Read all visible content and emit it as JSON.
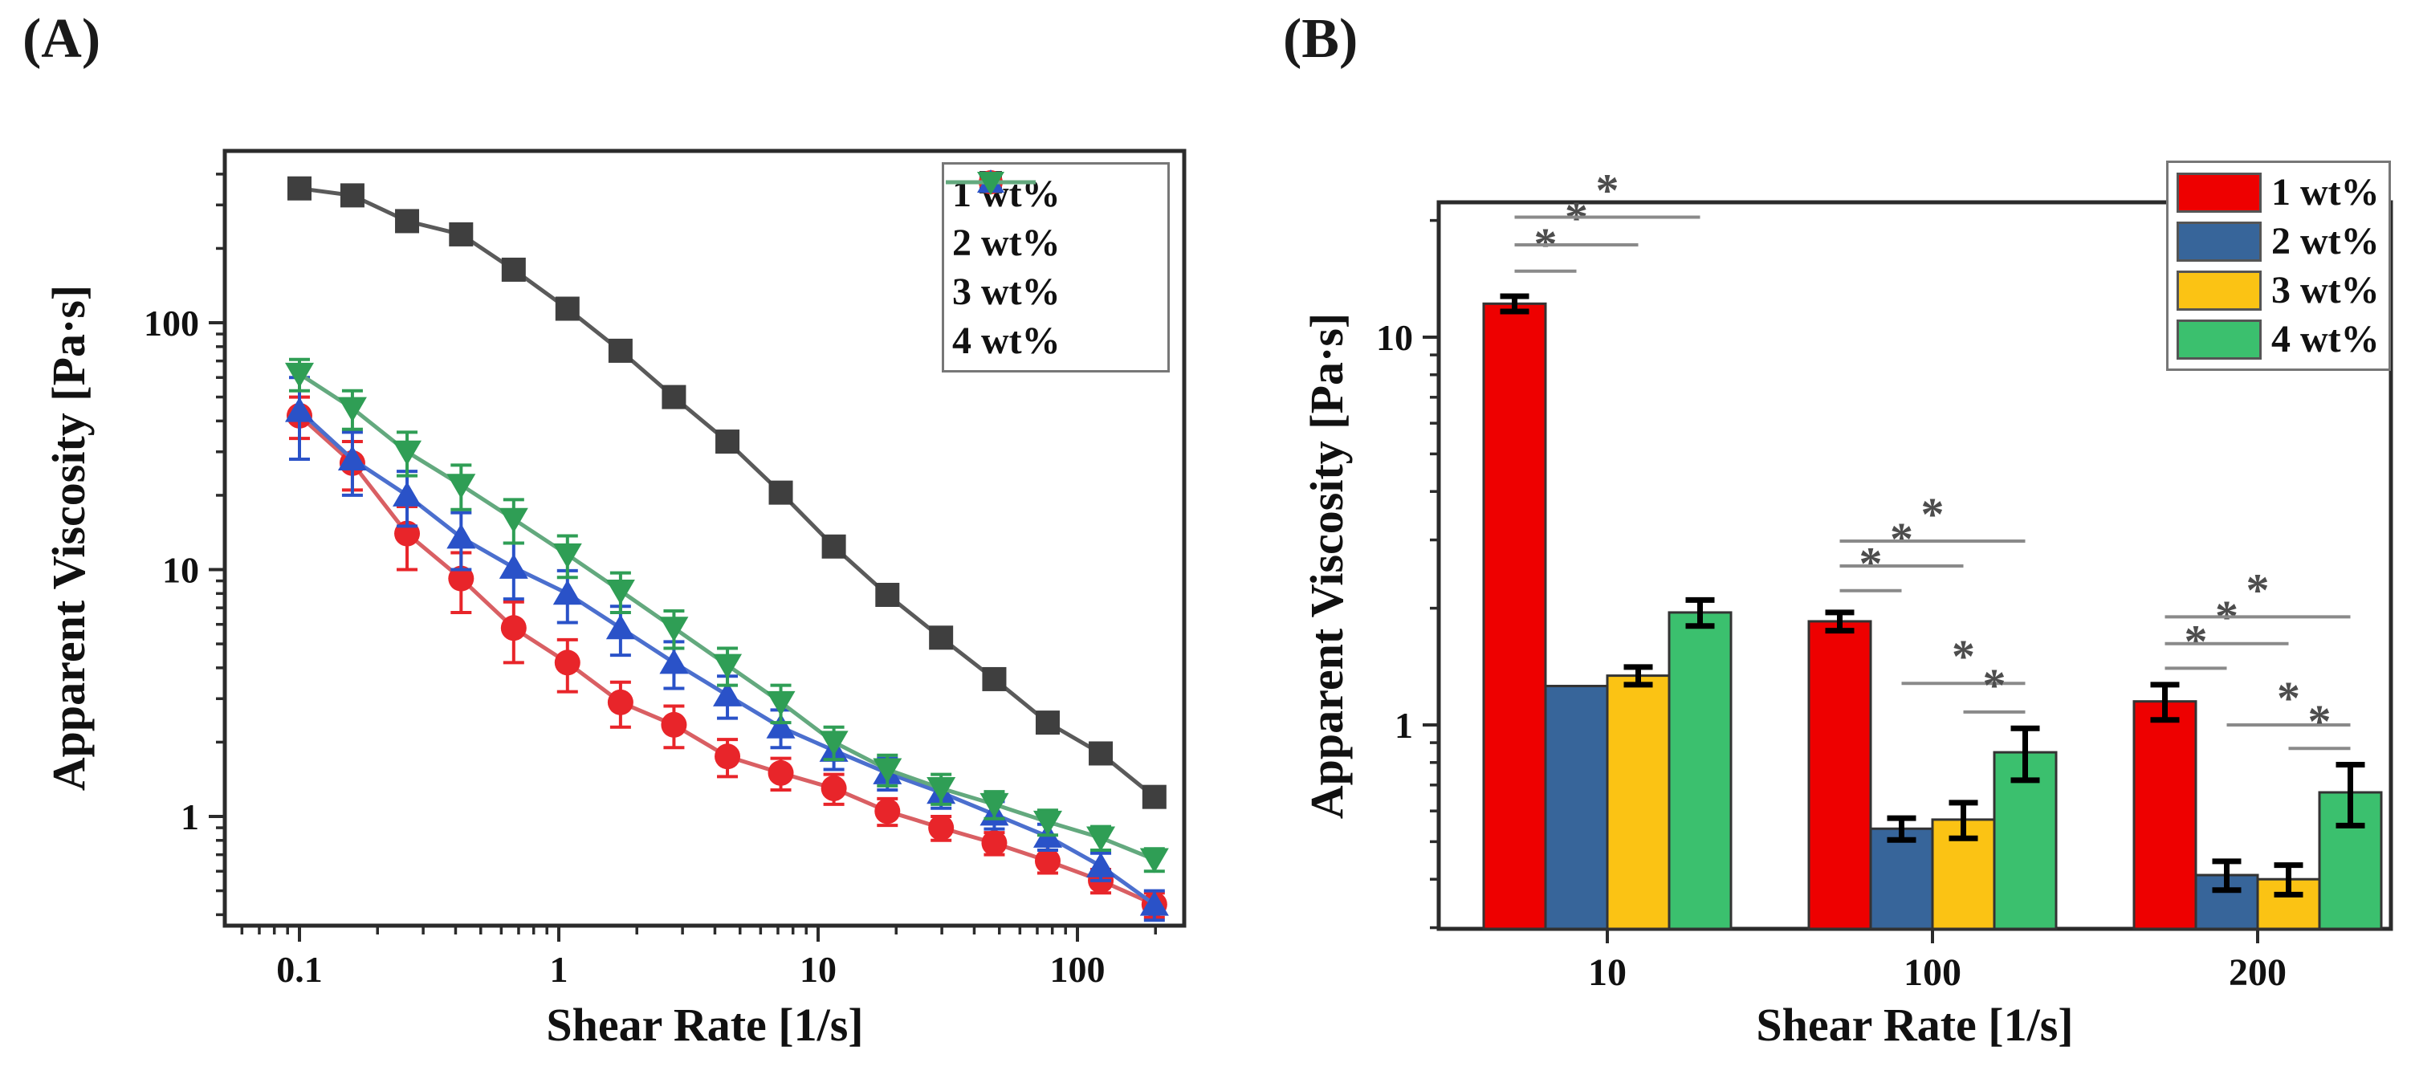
{
  "panels": {
    "a": {
      "label": "(A)"
    },
    "b": {
      "label": "(B)"
    }
  },
  "chart_data": [
    {
      "id": "A",
      "type": "line",
      "xlabel": "Shear Rate [1/s]",
      "ylabel": "Apparent Viscosity [Pa·s]",
      "x_scale": "log",
      "y_scale": "log",
      "xlim": [
        0.05,
        255
      ],
      "ylim": [
        0.36,
        500
      ],
      "x_ticks": [
        0.1,
        1,
        10,
        100
      ],
      "y_ticks": [
        1,
        10,
        100
      ],
      "legend_position": "top-right",
      "grid": false,
      "x": [
        0.1,
        0.16,
        0.26,
        0.42,
        0.67,
        1.08,
        1.73,
        2.78,
        4.47,
        7.18,
        11.5,
        18.5,
        29.8,
        47.8,
        76.8,
        123,
        198
      ],
      "series": [
        {
          "name": "1 wt%",
          "marker": "square",
          "color": "#3f3f3f",
          "line_color": "#5a5a5a",
          "values": [
            350,
            328,
            258,
            228,
            164,
            114,
            77,
            50,
            33,
            20.5,
            12.4,
            7.9,
            5.3,
            3.6,
            2.4,
            1.8,
            1.2
          ],
          "errors": [
            20,
            18,
            15,
            13,
            10,
            7,
            5,
            3.5,
            2.3,
            1.4,
            0.9,
            0.55,
            0.4,
            0.25,
            0.18,
            0.13,
            0.1
          ]
        },
        {
          "name": "2 wt%",
          "marker": "circle",
          "color": "#e8252a",
          "line_color": "#d95f63",
          "values": [
            42,
            27,
            14,
            9.2,
            5.8,
            4.2,
            2.9,
            2.35,
            1.75,
            1.5,
            1.3,
            1.05,
            0.9,
            0.78,
            0.66,
            0.55,
            0.44
          ],
          "errors": [
            8,
            6,
            4,
            2.5,
            1.6,
            1.0,
            0.6,
            0.45,
            0.3,
            0.22,
            0.18,
            0.13,
            0.1,
            0.08,
            0.07,
            0.06,
            0.05
          ]
        },
        {
          "name": "3 wt%",
          "marker": "triangle-up",
          "color": "#2a52c8",
          "line_color": "#4b6fce",
          "values": [
            44,
            28,
            20,
            13.5,
            10.2,
            8.0,
            5.8,
            4.2,
            3.1,
            2.3,
            1.85,
            1.5,
            1.25,
            1.02,
            0.83,
            0.63,
            0.44
          ],
          "errors": [
            16,
            8,
            5,
            3.5,
            2.6,
            1.9,
            1.3,
            0.9,
            0.6,
            0.4,
            0.3,
            0.22,
            0.17,
            0.13,
            0.1,
            0.08,
            0.06
          ]
        },
        {
          "name": "4 wt%",
          "marker": "triangle-down",
          "color": "#2f9e55",
          "line_color": "#63a97e",
          "values": [
            62,
            45,
            30,
            22,
            16,
            11.5,
            8.2,
            5.8,
            4.1,
            2.9,
            2.0,
            1.55,
            1.3,
            1.12,
            0.95,
            0.82,
            0.67
          ],
          "errors": [
            9,
            8,
            6,
            4.5,
            3.2,
            2.2,
            1.5,
            1.0,
            0.7,
            0.5,
            0.3,
            0.22,
            0.18,
            0.14,
            0.11,
            0.09,
            0.07
          ]
        }
      ]
    },
    {
      "id": "B",
      "type": "bar",
      "xlabel": "Shear Rate [1/s]",
      "ylabel": "Apparent Viscosity [Pa·s]",
      "y_scale": "log",
      "ylim": [
        0.3,
        22.3
      ],
      "y_ticks": [
        1,
        10
      ],
      "legend_position": "top-right",
      "grid": false,
      "categories": [
        "10",
        "100",
        "200"
      ],
      "series": [
        {
          "name": "1 wt%",
          "color": "#ee0000",
          "values": [
            12.2,
            1.85,
            1.15
          ],
          "errors": [
            0.55,
            0.1,
            0.12
          ]
        },
        {
          "name": "2 wt%",
          "color": "#37659a",
          "values": [
            1.26,
            0.54,
            0.41
          ],
          "errors": [
            0,
            0.035,
            0.035
          ]
        },
        {
          "name": "3 wt%",
          "color": "#fbc314",
          "values": [
            1.34,
            0.57,
            0.4
          ],
          "errors": [
            0.07,
            0.06,
            0.035
          ]
        },
        {
          "name": "4 wt%",
          "color": "#3bc06e",
          "values": [
            1.95,
            0.85,
            0.67
          ],
          "errors": [
            0.15,
            0.13,
            0.12
          ]
        }
      ],
      "significance": {
        "symbol": "*",
        "color": "#4d4d4d",
        "brackets": [
          {
            "group": 0,
            "from": 0,
            "to": 1,
            "y": 14.8
          },
          {
            "group": 0,
            "from": 0,
            "to": 2,
            "y": 17.3
          },
          {
            "group": 0,
            "from": 0,
            "to": 3,
            "y": 20.4
          },
          {
            "group": 1,
            "from": 0,
            "to": 1,
            "y": 2.22
          },
          {
            "group": 1,
            "from": 0,
            "to": 2,
            "y": 2.57
          },
          {
            "group": 1,
            "from": 0,
            "to": 3,
            "y": 2.98
          },
          {
            "group": 1,
            "from": 1,
            "to": 3,
            "y": 1.28
          },
          {
            "group": 1,
            "from": 2,
            "to": 3,
            "y": 1.08
          },
          {
            "group": 2,
            "from": 0,
            "to": 1,
            "y": 1.4
          },
          {
            "group": 2,
            "from": 0,
            "to": 2,
            "y": 1.62
          },
          {
            "group": 2,
            "from": 0,
            "to": 3,
            "y": 1.9
          },
          {
            "group": 2,
            "from": 1,
            "to": 3,
            "y": 1.0
          },
          {
            "group": 2,
            "from": 2,
            "to": 3,
            "y": 0.87
          }
        ]
      }
    }
  ]
}
